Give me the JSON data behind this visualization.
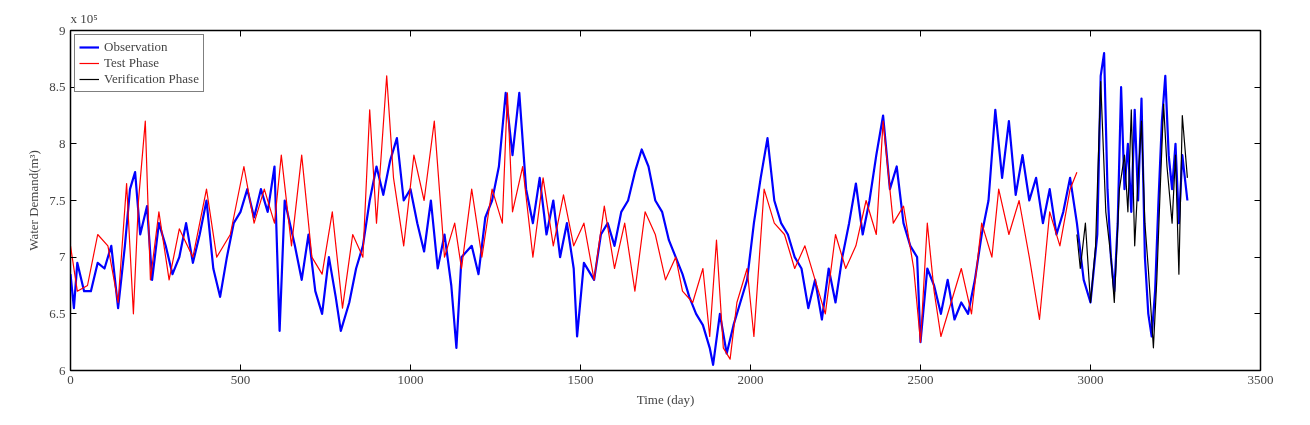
{
  "chart_data": {
    "type": "line",
    "xlabel": "Time (day)",
    "ylabel": "Water Demand(m³)",
    "annotations": [
      "x 10⁵"
    ],
    "xlim": [
      0,
      3500
    ],
    "xticks": [
      0,
      500,
      1000,
      1500,
      2000,
      2500,
      3000,
      3500
    ],
    "ylim": [
      6,
      9
    ],
    "yticks": [
      6,
      6.5,
      7,
      7.5,
      8,
      8.5,
      9
    ],
    "grid": false,
    "legend": "top left",
    "line_style": "solid",
    "marker": "none",
    "series": [
      {
        "name": "Observation",
        "color": "#0000ff",
        "x": [
          0,
          10,
          20,
          40,
          60,
          80,
          100,
          120,
          140,
          160,
          175,
          190,
          205,
          225,
          240,
          260,
          280,
          300,
          320,
          340,
          360,
          380,
          400,
          420,
          440,
          460,
          480,
          500,
          520,
          540,
          560,
          580,
          600,
          615,
          630,
          660,
          680,
          700,
          720,
          740,
          760,
          780,
          795,
          820,
          840,
          860,
          880,
          900,
          920,
          940,
          960,
          980,
          1000,
          1020,
          1040,
          1060,
          1080,
          1100,
          1120,
          1135,
          1150,
          1180,
          1200,
          1220,
          1240,
          1260,
          1280,
          1300,
          1320,
          1340,
          1360,
          1380,
          1400,
          1420,
          1440,
          1460,
          1480,
          1490,
          1510,
          1540,
          1560,
          1580,
          1600,
          1620,
          1640,
          1660,
          1680,
          1700,
          1720,
          1740,
          1760,
          1780,
          1800,
          1820,
          1840,
          1860,
          1880,
          1890,
          1910,
          1930,
          1950,
          1970,
          1990,
          2010,
          2030,
          2050,
          2070,
          2090,
          2110,
          2130,
          2150,
          2170,
          2190,
          2210,
          2230,
          2250,
          2270,
          2290,
          2310,
          2330,
          2350,
          2370,
          2390,
          2410,
          2430,
          2450,
          2470,
          2490,
          2500,
          2520,
          2540,
          2560,
          2580,
          2600,
          2620,
          2640,
          2660,
          2680,
          2700,
          2720,
          2740,
          2760,
          2780,
          2800,
          2820,
          2840,
          2860,
          2880,
          2900,
          2920,
          2940,
          2960,
          2980,
          3000,
          3020,
          3030,
          3040,
          3050,
          3060,
          3070,
          3080,
          3090,
          3100,
          3110,
          3120,
          3130,
          3140,
          3150,
          3160,
          3170,
          3180,
          3190,
          3200,
          3210,
          3220,
          3230,
          3240,
          3250,
          3260,
          3270,
          3285
        ],
        "values": [
          6.85,
          6.55,
          6.95,
          6.7,
          6.7,
          6.95,
          6.9,
          7.1,
          6.55,
          7.1,
          7.6,
          7.75,
          7.2,
          7.45,
          6.8,
          7.3,
          7.1,
          6.85,
          7.0,
          7.3,
          6.95,
          7.2,
          7.5,
          6.9,
          6.65,
          7.0,
          7.3,
          7.4,
          7.6,
          7.35,
          7.6,
          7.4,
          7.8,
          6.35,
          7.5,
          7.1,
          6.8,
          7.2,
          6.7,
          6.5,
          7.0,
          6.65,
          6.35,
          6.6,
          6.9,
          7.1,
          7.5,
          7.8,
          7.55,
          7.85,
          8.05,
          7.5,
          7.6,
          7.3,
          7.05,
          7.5,
          6.9,
          7.2,
          6.75,
          6.2,
          7.0,
          7.1,
          6.85,
          7.35,
          7.5,
          7.8,
          8.45,
          7.9,
          8.45,
          7.6,
          7.3,
          7.7,
          7.2,
          7.5,
          7.0,
          7.3,
          6.9,
          6.3,
          6.95,
          6.8,
          7.2,
          7.3,
          7.1,
          7.4,
          7.5,
          7.75,
          7.95,
          7.8,
          7.5,
          7.4,
          7.15,
          7.0,
          6.85,
          6.65,
          6.5,
          6.4,
          6.2,
          6.05,
          6.5,
          6.15,
          6.4,
          6.6,
          6.8,
          7.3,
          7.7,
          8.05,
          7.5,
          7.3,
          7.2,
          7.0,
          6.9,
          6.55,
          6.8,
          6.45,
          6.9,
          6.6,
          7.0,
          7.3,
          7.65,
          7.2,
          7.5,
          7.9,
          8.25,
          7.6,
          7.8,
          7.3,
          7.1,
          7.0,
          6.25,
          6.9,
          6.75,
          6.5,
          6.8,
          6.45,
          6.6,
          6.5,
          6.8,
          7.2,
          7.5,
          8.3,
          7.7,
          8.2,
          7.55,
          7.9,
          7.5,
          7.7,
          7.3,
          7.6,
          7.2,
          7.4,
          7.7,
          7.3,
          6.8,
          6.6,
          7.2,
          8.6,
          8.8,
          7.6,
          7.0,
          6.7,
          7.3,
          8.5,
          7.6,
          8.0,
          7.4,
          8.3,
          7.5,
          8.4,
          7.0,
          6.5,
          6.3,
          6.7,
          7.5,
          8.2,
          8.6,
          7.9,
          7.6,
          8.0,
          7.3,
          7.9,
          7.5
        ]
      },
      {
        "name": "Test Phase",
        "color": "#ff0000",
        "x": [
          0,
          20,
          50,
          80,
          110,
          140,
          165,
          185,
          200,
          220,
          235,
          260,
          290,
          320,
          360,
          400,
          430,
          470,
          510,
          540,
          570,
          600,
          620,
          650,
          680,
          710,
          740,
          770,
          800,
          830,
          860,
          880,
          900,
          930,
          950,
          980,
          1010,
          1040,
          1070,
          1100,
          1130,
          1150,
          1180,
          1210,
          1240,
          1270,
          1285,
          1300,
          1330,
          1360,
          1390,
          1420,
          1450,
          1480,
          1510,
          1540,
          1570,
          1600,
          1630,
          1660,
          1690,
          1720,
          1750,
          1780,
          1800,
          1830,
          1860,
          1880,
          1900,
          1920,
          1940,
          1960,
          1990,
          2010,
          2040,
          2070,
          2100,
          2130,
          2160,
          2190,
          2220,
          2250,
          2280,
          2310,
          2340,
          2370,
          2390,
          2420,
          2450,
          2480,
          2500,
          2520,
          2540,
          2560,
          2590,
          2620,
          2650,
          2680,
          2710,
          2730,
          2760,
          2790,
          2820,
          2850,
          2880,
          2910,
          2940,
          2960
        ],
        "values": [
          7.1,
          6.7,
          6.75,
          7.2,
          7.1,
          6.6,
          7.65,
          6.5,
          7.5,
          8.2,
          6.8,
          7.4,
          6.8,
          7.25,
          7.0,
          7.6,
          7.0,
          7.2,
          7.8,
          7.3,
          7.6,
          7.3,
          7.9,
          7.1,
          7.9,
          7.0,
          6.85,
          7.4,
          6.55,
          7.2,
          7.0,
          8.3,
          7.3,
          8.6,
          7.7,
          7.1,
          7.9,
          7.5,
          8.2,
          7.0,
          7.3,
          6.9,
          7.6,
          7.0,
          7.6,
          7.3,
          8.45,
          7.4,
          7.8,
          7.0,
          7.7,
          7.1,
          7.55,
          7.1,
          7.3,
          6.8,
          7.45,
          6.9,
          7.3,
          6.7,
          7.4,
          7.2,
          6.8,
          7.0,
          6.7,
          6.6,
          6.9,
          6.3,
          7.15,
          6.2,
          6.1,
          6.6,
          6.9,
          6.3,
          7.6,
          7.3,
          7.2,
          6.9,
          7.1,
          6.8,
          6.5,
          7.2,
          6.9,
          7.1,
          7.5,
          7.2,
          8.2,
          7.3,
          7.45,
          6.9,
          6.25,
          7.3,
          6.7,
          6.3,
          6.6,
          6.9,
          6.5,
          7.3,
          7.0,
          7.6,
          7.2,
          7.5,
          7.0,
          6.45,
          7.4,
          7.1,
          7.6,
          7.75
        ]
      },
      {
        "name": "Verification Phase",
        "color": "#000000",
        "x": [
          2960,
          2970,
          2985,
          3000,
          3015,
          3030,
          3045,
          3060,
          3070,
          3085,
          3100,
          3110,
          3120,
          3130,
          3140,
          3150,
          3160,
          3170,
          3185,
          3195,
          3205,
          3215,
          3225,
          3240,
          3250,
          3260,
          3270,
          3285
        ],
        "values": [
          7.2,
          6.9,
          7.3,
          6.6,
          7.1,
          8.55,
          7.4,
          7.0,
          6.6,
          7.6,
          7.9,
          7.4,
          8.3,
          7.1,
          7.7,
          8.2,
          7.3,
          6.9,
          6.2,
          6.8,
          7.6,
          8.35,
          7.8,
          7.3,
          7.9,
          6.85,
          8.25,
          7.7
        ]
      }
    ]
  }
}
